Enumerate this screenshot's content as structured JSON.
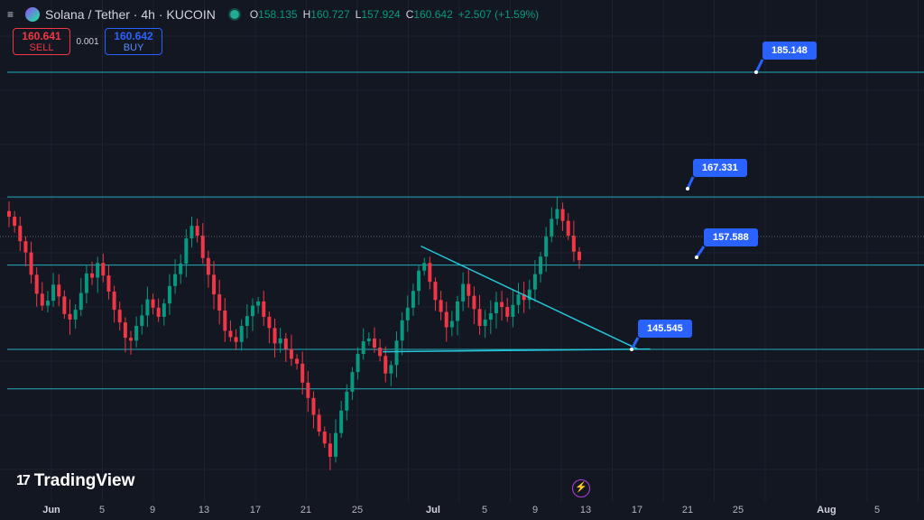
{
  "header": {
    "menu_icon": "≡",
    "title": "Solana / Tether · 4h · KUCOIN",
    "ohlc": [
      {
        "key": "O",
        "value": "158.135"
      },
      {
        "key": "H",
        "value": "160.727"
      },
      {
        "key": "L",
        "value": "157.924"
      },
      {
        "key": "C",
        "value": "160.642"
      }
    ],
    "change": "+2.507 (+1.59%)"
  },
  "trade": {
    "sell_price": "160.641",
    "sell_label": "SELL",
    "spread": "0.001",
    "buy_price": "160.642",
    "buy_label": "BUY"
  },
  "price_tags": [
    "185.148",
    "167.331",
    "157.588",
    "145.545"
  ],
  "xaxis": {
    "ticks": [
      {
        "label": "Jun",
        "month": true
      },
      {
        "label": "5",
        "month": false
      },
      {
        "label": "9",
        "month": false
      },
      {
        "label": "13",
        "month": false
      },
      {
        "label": "17",
        "month": false
      },
      {
        "label": "21",
        "month": false
      },
      {
        "label": "25",
        "month": false
      },
      {
        "label": "Jul",
        "month": true
      },
      {
        "label": "5",
        "month": false
      },
      {
        "label": "9",
        "month": false
      },
      {
        "label": "13",
        "month": false
      },
      {
        "label": "17",
        "month": false
      },
      {
        "label": "21",
        "month": false
      },
      {
        "label": "25",
        "month": false
      },
      {
        "label": "Aug",
        "month": true
      },
      {
        "label": "5",
        "month": false
      }
    ]
  },
  "logo_text": "TradingView",
  "colors": {
    "up": "#089981",
    "down": "#f23645",
    "line": "#26c6da",
    "tag": "#2962ff",
    "background": "#131722"
  },
  "chart_data": {
    "type": "candlestick",
    "horizontal_levels": [
      185.148,
      167.331,
      157.588,
      145.545,
      139.9
    ],
    "trendlines": [
      {
        "from": {
          "date": "2024-06-30",
          "price": 160.3
        },
        "to": {
          "date": "2024-07-17",
          "price": 145.6
        }
      },
      {
        "from": {
          "date": "2024-06-27",
          "price": 145.2
        },
        "to": {
          "date": "2024-07-18",
          "price": 145.6
        }
      }
    ],
    "closes": [
      164.5,
      163.2,
      161.0,
      159.4,
      156.2,
      153.5,
      151.8,
      152.5,
      154.8,
      153.1,
      150.6,
      149.8,
      151.2,
      153.6,
      156.4,
      155.8,
      157.9,
      156.1,
      153.8,
      151.2,
      149.4,
      147.2,
      146.8,
      148.9,
      150.4,
      152.7,
      151.5,
      150.2,
      152.1,
      154.6,
      156.3,
      157.8,
      161.4,
      163.2,
      161.8,
      158.6,
      156.2,
      153.4,
      151.1,
      148.2,
      147.3,
      146.6,
      148.9,
      150.3,
      151.8,
      152.4,
      150.2,
      148.6,
      146.4,
      147.1,
      145.6,
      144.2,
      143.5,
      140.8,
      138.6,
      136.2,
      133.8,
      132.1,
      130.2,
      133.6,
      136.8,
      139.5,
      142.3,
      144.9,
      146.7,
      147.1,
      145.8,
      144.6,
      142.1,
      143.3,
      146.8,
      149.7,
      151.5,
      153.9,
      156.8,
      157.9,
      155.2,
      152.6,
      150.9,
      148.7,
      149.6,
      152.4,
      154.9,
      153.2,
      151.3,
      148.9,
      149.8,
      150.7,
      152.3,
      151.6,
      150.2,
      151.9,
      153.4,
      152.6,
      154.1,
      156.3,
      158.8,
      161.7,
      164.2,
      165.6,
      163.9,
      161.8,
      159.5,
      158.3
    ]
  }
}
